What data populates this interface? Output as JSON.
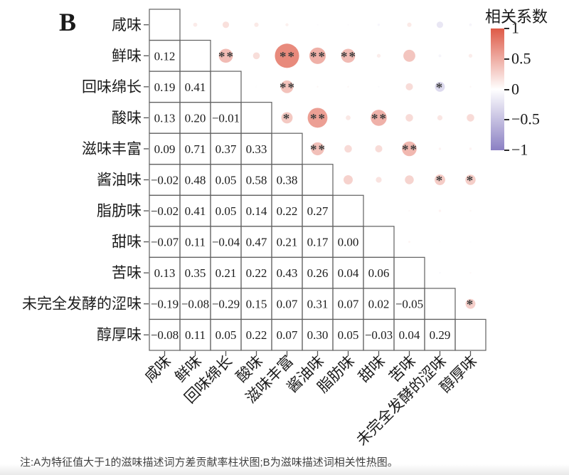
{
  "panel_label": "B",
  "note": "注:A为特征值大于1的滋味描述词方差贡献率柱状图;B为滋味描述词相关性热图。",
  "legend": {
    "title": "相关系数",
    "ticks": [
      "1",
      "0.5",
      "0",
      "−0.5",
      "−1"
    ],
    "tick_values": [
      1,
      0.5,
      0,
      -0.5,
      -1
    ],
    "range": [
      -1,
      1
    ],
    "position": "right",
    "colors": {
      "positive": "#de5a47",
      "zero": "#ffffff",
      "negative": "#8b80c3"
    }
  },
  "chart_data": {
    "type": "heatmap",
    "subtype": "correlation-matrix",
    "title": "",
    "labels": [
      "咸味",
      "鲜味",
      "回味绵长",
      "酸味",
      "滋味丰富",
      "酱油味",
      "脂肪味",
      "甜味",
      "苦味",
      "未完全发酵的涩味",
      "醇厚味"
    ],
    "lower_triangle": [
      [
        "0.12"
      ],
      [
        "0.19",
        "0.41"
      ],
      [
        "0.13",
        "0.20",
        "−0.01"
      ],
      [
        "0.09",
        "0.71",
        "0.37",
        "0.33"
      ],
      [
        "−0.02",
        "0.48",
        "0.05",
        "0.58",
        "0.38"
      ],
      [
        "−0.02",
        "0.41",
        "0.05",
        "0.14",
        "0.22",
        "0.27"
      ],
      [
        "−0.07",
        "0.11",
        "−0.04",
        "0.47",
        "0.21",
        "0.17",
        "0.00"
      ],
      [
        "0.13",
        "0.35",
        "0.21",
        "0.22",
        "0.43",
        "0.26",
        "0.04",
        "0.06"
      ],
      [
        "−0.19",
        "−0.08",
        "−0.29",
        "0.15",
        "0.07",
        "0.31",
        "0.07",
        "0.02",
        "−0.05"
      ],
      [
        "−0.08",
        "0.11",
        "0.05",
        "0.22",
        "0.07",
        "0.30",
        "0.05",
        "−0.03",
        "0.04",
        "0.29"
      ]
    ],
    "significance_marks": [
      {
        "row": 1,
        "col": 2,
        "mark": "**"
      },
      {
        "row": 1,
        "col": 4,
        "mark": "**"
      },
      {
        "row": 1,
        "col": 5,
        "mark": "**"
      },
      {
        "row": 1,
        "col": 6,
        "mark": "**"
      },
      {
        "row": 2,
        "col": 4,
        "mark": "**"
      },
      {
        "row": 2,
        "col": 9,
        "mark": "*"
      },
      {
        "row": 3,
        "col": 4,
        "mark": "*"
      },
      {
        "row": 3,
        "col": 5,
        "mark": "**"
      },
      {
        "row": 3,
        "col": 7,
        "mark": "**"
      },
      {
        "row": 4,
        "col": 5,
        "mark": "**"
      },
      {
        "row": 4,
        "col": 8,
        "mark": "**"
      },
      {
        "row": 5,
        "col": 9,
        "mark": "*"
      },
      {
        "row": 5,
        "col": 10,
        "mark": "*"
      },
      {
        "row": 9,
        "col": 10,
        "mark": "*"
      }
    ],
    "upper_triangle_encoding": "circle size and color encode correlation magnitude/sign; asterisks mark significance"
  }
}
